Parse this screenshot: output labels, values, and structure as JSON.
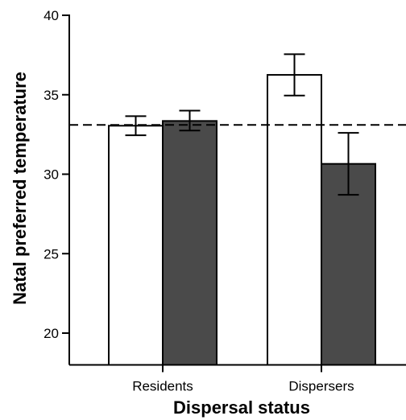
{
  "chart_data": {
    "type": "bar",
    "xlabel": "Dispersal status",
    "ylabel": "Natal preferred temperature",
    "categories": [
      "Residents",
      "Dispersers"
    ],
    "ylim": [
      18,
      40
    ],
    "yticks": [
      20,
      25,
      30,
      35,
      40
    ],
    "reference_line": {
      "y": 33.1,
      "style": "dashed"
    },
    "series": [
      {
        "fill": "#ffffff",
        "values": [
          33.05,
          36.25
        ],
        "error_low": [
          32.45,
          34.95
        ],
        "error_high": [
          33.65,
          37.55
        ]
      },
      {
        "fill": "#4a4a4a",
        "values": [
          33.35,
          30.65
        ],
        "error_low": [
          32.75,
          28.7
        ],
        "error_high": [
          34.0,
          32.6
        ]
      }
    ]
  }
}
